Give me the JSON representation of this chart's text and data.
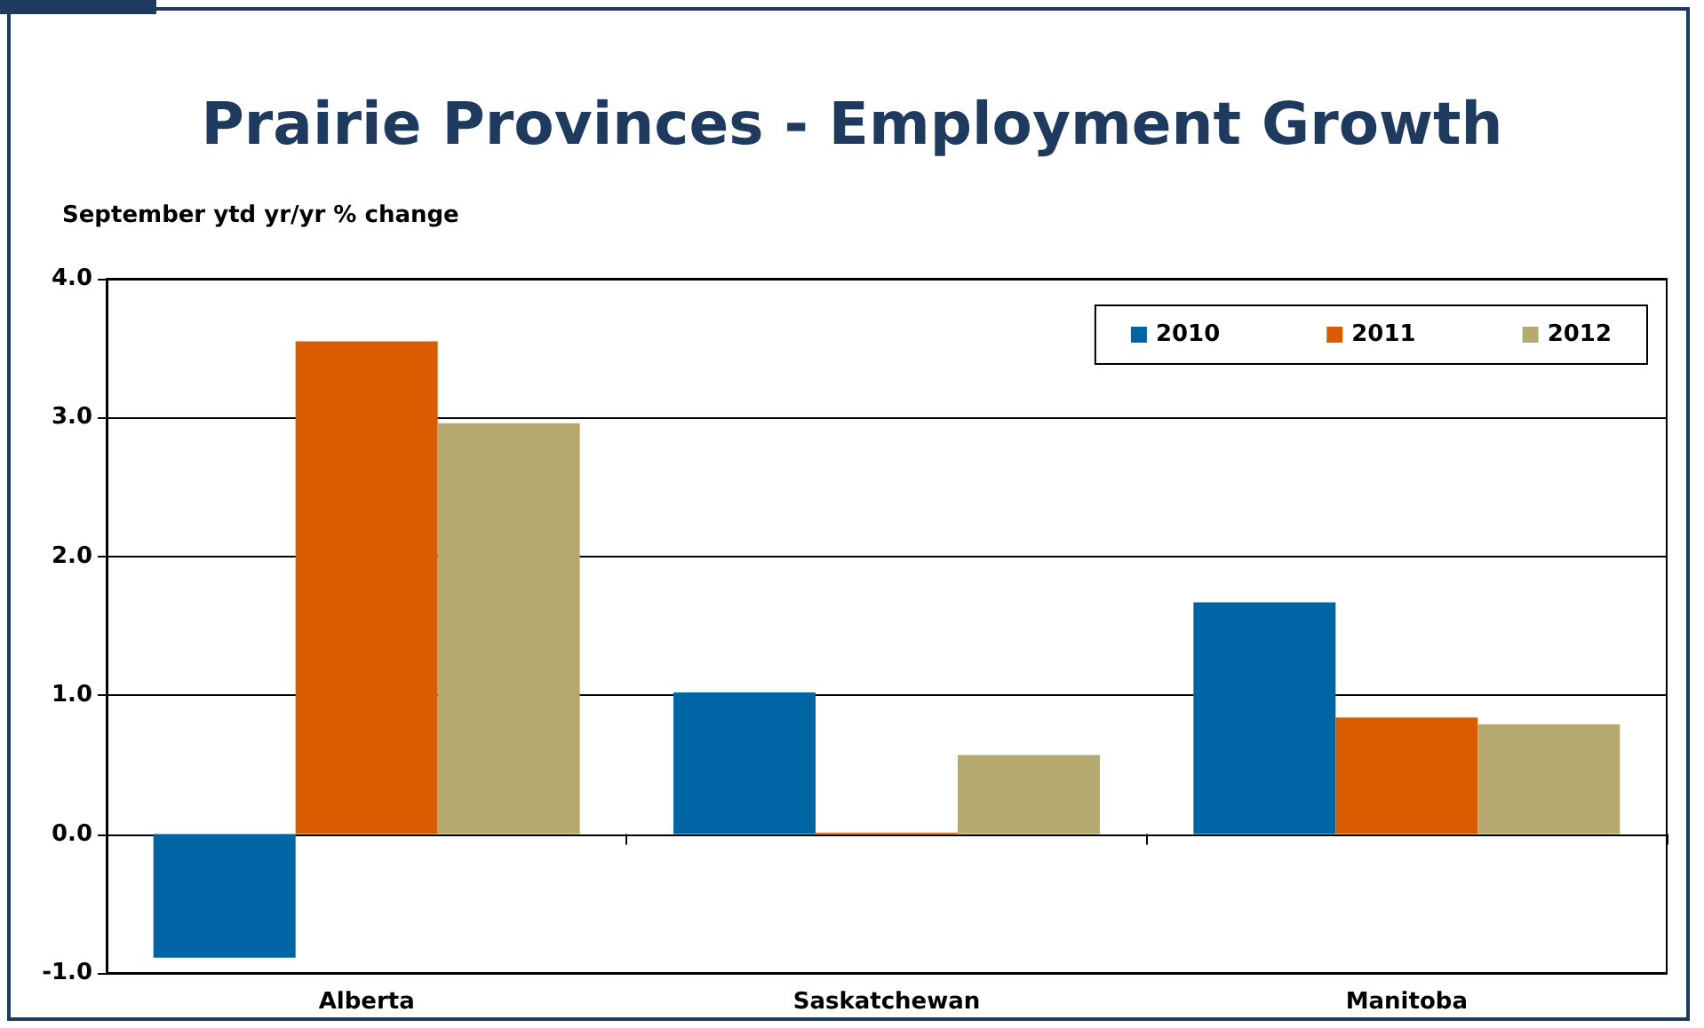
{
  "chart_data": {
    "type": "bar",
    "title": "Prairie Provinces - Employment Growth",
    "ylabel": "September ytd yr/yr % change",
    "categories": [
      "Alberta",
      "Saskatchewan",
      "Manitoba"
    ],
    "series": [
      {
        "name": "2010",
        "color": "#0065a4",
        "values": [
          -0.89,
          1.02,
          1.67
        ]
      },
      {
        "name": "2011",
        "color": "#d95c00",
        "values": [
          3.55,
          0.01,
          0.84
        ]
      },
      {
        "name": "2012",
        "color": "#b5a96f",
        "values": [
          2.96,
          0.57,
          0.79
        ]
      }
    ],
    "ylim": [
      -1,
      4
    ],
    "yticks": [
      {
        "value": -1,
        "label": "-1.0"
      },
      {
        "value": 0,
        "label": "0.0"
      },
      {
        "value": 1,
        "label": "1.0"
      },
      {
        "value": 2,
        "label": "2.0"
      },
      {
        "value": 3,
        "label": "3.0"
      },
      {
        "value": 4,
        "label": "4.0"
      }
    ],
    "grid": "y",
    "legend": "top right"
  }
}
